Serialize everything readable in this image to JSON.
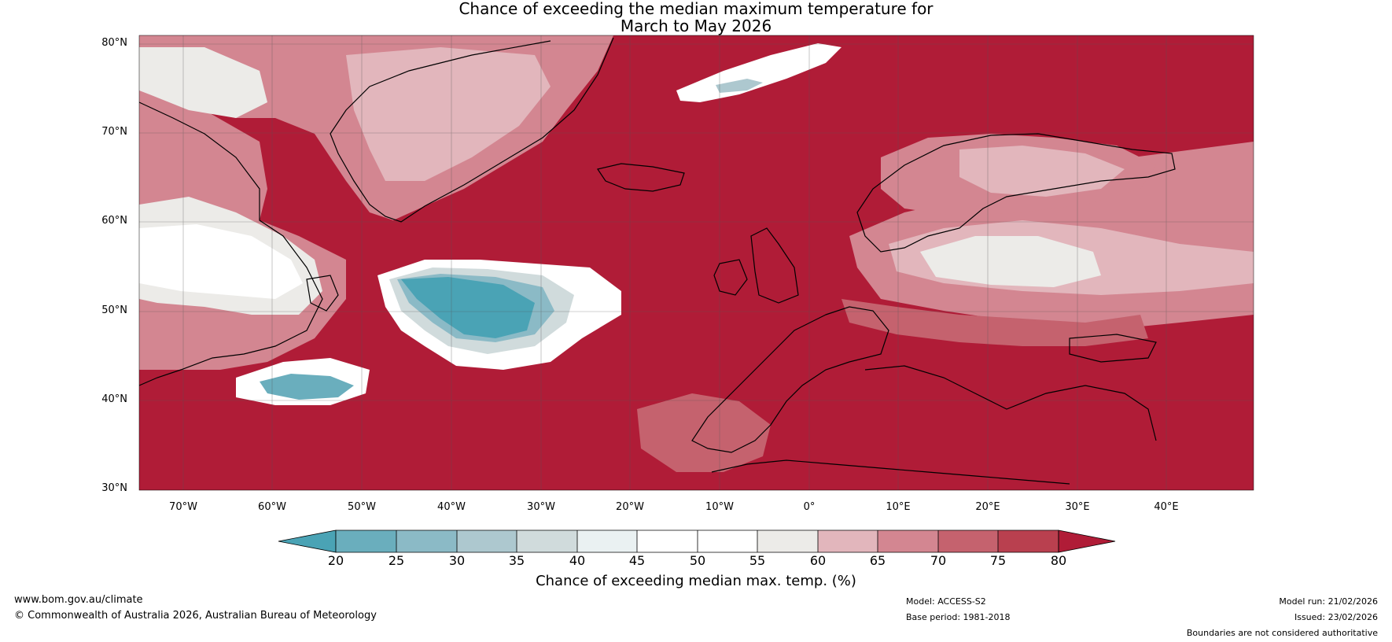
{
  "title_line1": "Chance of exceeding the median maximum temperature for",
  "title_line2": "March to May 2026",
  "lat_labels": [
    "80°N",
    "70°N",
    "60°N",
    "50°N",
    "40°N",
    "30°N"
  ],
  "lon_labels": [
    "70°W",
    "60°W",
    "50°W",
    "40°W",
    "30°W",
    "20°W",
    "10°W",
    "0°",
    "10°E",
    "20°E",
    "30°E",
    "40°E"
  ],
  "colorbar": {
    "ticks": [
      "20",
      "25",
      "30",
      "35",
      "40",
      "45",
      "50",
      "55",
      "60",
      "65",
      "70",
      "75",
      "80"
    ],
    "colors": [
      "#4aa3b5",
      "#6aaebd",
      "#8bbac6",
      "#adc8cf",
      "#d0dbdc",
      "#eaf1f2",
      "#ffffff",
      "#ffffff",
      "#ecebe8",
      "#e2b6bc",
      "#d38691",
      "#c5626e",
      "#b9404f",
      "#b01c37"
    ],
    "label": "Chance of exceeding median max. temp. (%)"
  },
  "palette": {
    "deep_red": "#b01c37",
    "red": "#b9404f",
    "mid_red": "#c5626e",
    "light_red": "#d38691",
    "pale_red": "#e2b6bc",
    "neutral": "#ecebe8",
    "white": "#ffffff",
    "pale_blue": "#d0dbdc",
    "blue": "#4aa3b5"
  },
  "footer": {
    "url": "www.bom.gov.au/climate",
    "copyright": "© Commonwealth of Australia 2026, Australian Bureau of Meteorology",
    "model": "Model: ACCESS-S2",
    "base_period": "Base period: 1981-2018",
    "model_run": "Model run: 21/02/2026",
    "issued": "Issued: 23/02/2026",
    "disclaimer": "Boundaries are not considered authoritative"
  }
}
